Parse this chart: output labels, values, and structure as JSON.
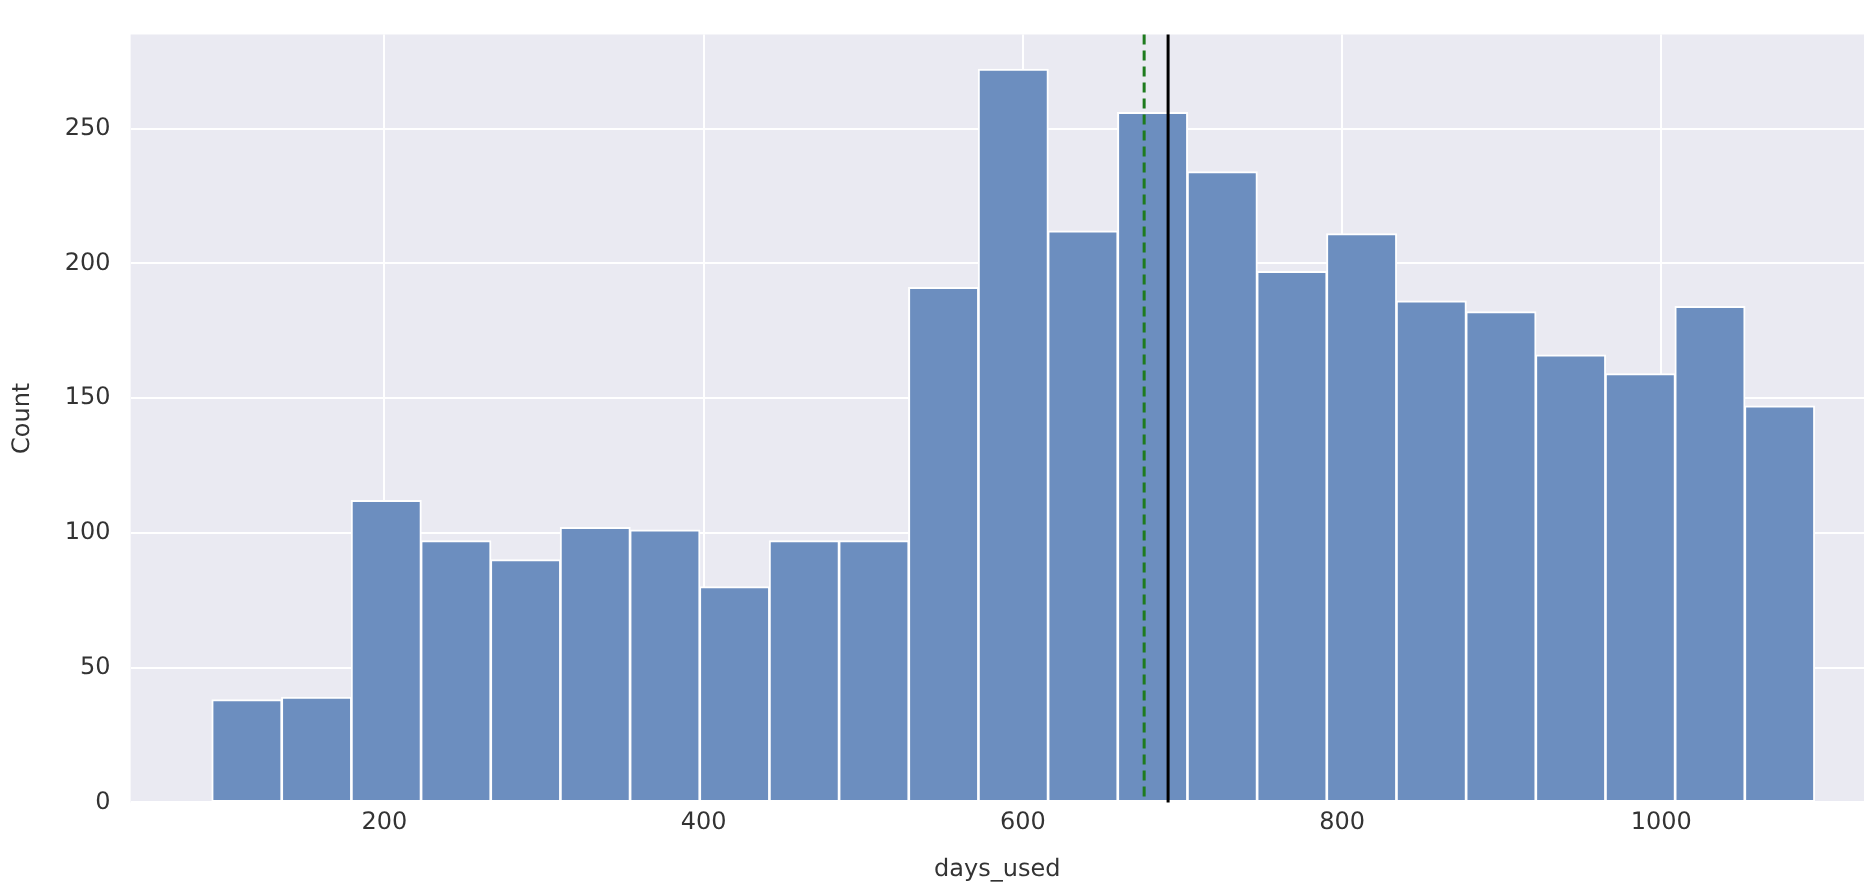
{
  "chart_data": {
    "type": "histogram",
    "xlabel": "days_used",
    "ylabel": "Count",
    "bins": [
      92,
      135.7,
      179.3,
      223,
      266.6,
      310.3,
      353.9,
      397.6,
      441.2,
      484.9,
      528.5,
      572.2,
      615.8,
      659.5,
      703.1,
      746.8,
      790.4,
      834.1,
      877.7,
      921.4,
      965,
      1008.7,
      1052.3,
      1096
    ],
    "values": [
      38,
      39,
      112,
      97,
      90,
      102,
      101,
      80,
      97,
      97,
      191,
      272,
      212,
      256,
      234,
      197,
      211,
      186,
      182,
      166,
      159,
      184,
      147
    ],
    "color": "#6c8ebf",
    "xlim": [
      41,
      1127
    ],
    "xticks": [
      200,
      400,
      600,
      800,
      1000
    ],
    "ylim": [
      0,
      285
    ],
    "yticks": [
      0,
      50,
      100,
      150,
      200,
      250
    ],
    "grid": true,
    "ref_lines": [
      {
        "axis": "x",
        "value": 676,
        "color": "#1e7b1e",
        "line_style": "dashed"
      },
      {
        "axis": "x",
        "value": 691,
        "color": "#000000",
        "line_style": "solid"
      }
    ]
  }
}
